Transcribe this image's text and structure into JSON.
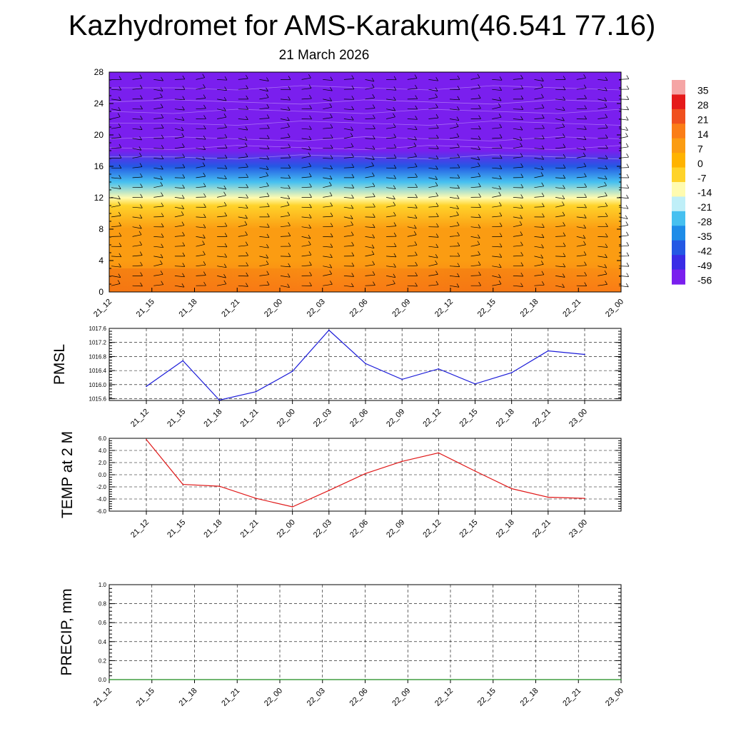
{
  "title": "Kazhydromet for AMS-Karakum(46.541 77.16)",
  "subtitle": "21 March 2026",
  "chart_data": [
    {
      "type": "heatmap",
      "name": "cross-section",
      "x_ticks": [
        "21_12",
        "21_15",
        "21_18",
        "21_21",
        "22_00",
        "22_03",
        "22_06",
        "22_09",
        "22_12",
        "22_15",
        "22_18",
        "22_21",
        "23_00"
      ],
      "y_ticks": [
        0,
        4,
        8,
        12,
        16,
        20,
        24,
        28
      ],
      "ylim": [
        0,
        28
      ],
      "temperature_by_level": [
        {
          "level": 0,
          "value": 16
        },
        {
          "level": 4,
          "value": 10
        },
        {
          "level": 8,
          "value": 4
        },
        {
          "level": 11,
          "value": -6
        },
        {
          "level": 12,
          "value": -16
        },
        {
          "level": 14,
          "value": -30
        },
        {
          "level": 16,
          "value": -44
        },
        {
          "level": 18,
          "value": -58
        },
        {
          "level": 28,
          "value": -60
        }
      ],
      "colorbar": {
        "labels": [
          "35",
          "28",
          "21",
          "14",
          "7",
          "0",
          "-7",
          "-14",
          "-21",
          "-28",
          "-35",
          "-42",
          "-49",
          "-56"
        ],
        "colors": [
          "#f5a5a5",
          "#e51a1a",
          "#f0501e",
          "#fb7d16",
          "#fb9c12",
          "#ffb300",
          "#ffd32a",
          "#fffbb0",
          "#bfeff8",
          "#46c0f0",
          "#1e8ce8",
          "#2458e4",
          "#3a2ce6",
          "#7a1fee"
        ]
      },
      "wind_barbs": true
    },
    {
      "type": "line",
      "name": "pmsl",
      "ylabel": "PMSL",
      "x": [
        "21_12",
        "21_15",
        "21_18",
        "21_21",
        "22_00",
        "22_03",
        "22_06",
        "22_09",
        "22_12",
        "22_15",
        "22_18",
        "22_21",
        "23_00"
      ],
      "values": [
        1015.95,
        1016.68,
        1015.56,
        1015.8,
        1016.38,
        1017.55,
        1016.6,
        1016.15,
        1016.45,
        1016.02,
        1016.34,
        1016.96,
        1016.86
      ],
      "y_ticks": [
        "1015.6",
        "1016.0",
        "1016.4",
        "1016.8",
        "1017.2",
        "1017.6"
      ],
      "ylim": [
        1015.55,
        1017.6
      ],
      "color": "#1a1ad8"
    },
    {
      "type": "line",
      "name": "temp2m",
      "ylabel": "TEMP at 2 M",
      "x": [
        "21_12",
        "21_15",
        "21_18",
        "21_21",
        "22_00",
        "22_03",
        "22_06",
        "22_09",
        "22_12",
        "22_15",
        "22_18",
        "22_21",
        "23_00"
      ],
      "values": [
        5.8,
        -1.6,
        -1.9,
        -3.9,
        -5.3,
        -2.6,
        0.2,
        2.2,
        3.6,
        0.6,
        -2.3,
        -3.7,
        -3.9
      ],
      "y_ticks": [
        "-6.0",
        "-4.0",
        "-2.0",
        "0.0",
        "2.0",
        "4.0",
        "6.0"
      ],
      "ylim": [
        -6,
        6
      ],
      "color": "#e01818"
    },
    {
      "type": "line",
      "name": "precip",
      "ylabel": "PRECIP, mm",
      "x": [
        "21_12",
        "21_15",
        "21_18",
        "21_21",
        "22_00",
        "22_03",
        "22_06",
        "22_09",
        "22_12",
        "22_15",
        "22_18",
        "22_21",
        "23_00"
      ],
      "values": [
        0,
        0,
        0,
        0,
        0,
        0,
        0,
        0,
        0,
        0,
        0,
        0,
        0
      ],
      "y_ticks": [
        "0.0",
        "0.2",
        "0.4",
        "0.6",
        "0.8",
        "1.0"
      ],
      "ylim": [
        0,
        1
      ],
      "color": "#1a8a1a"
    }
  ]
}
